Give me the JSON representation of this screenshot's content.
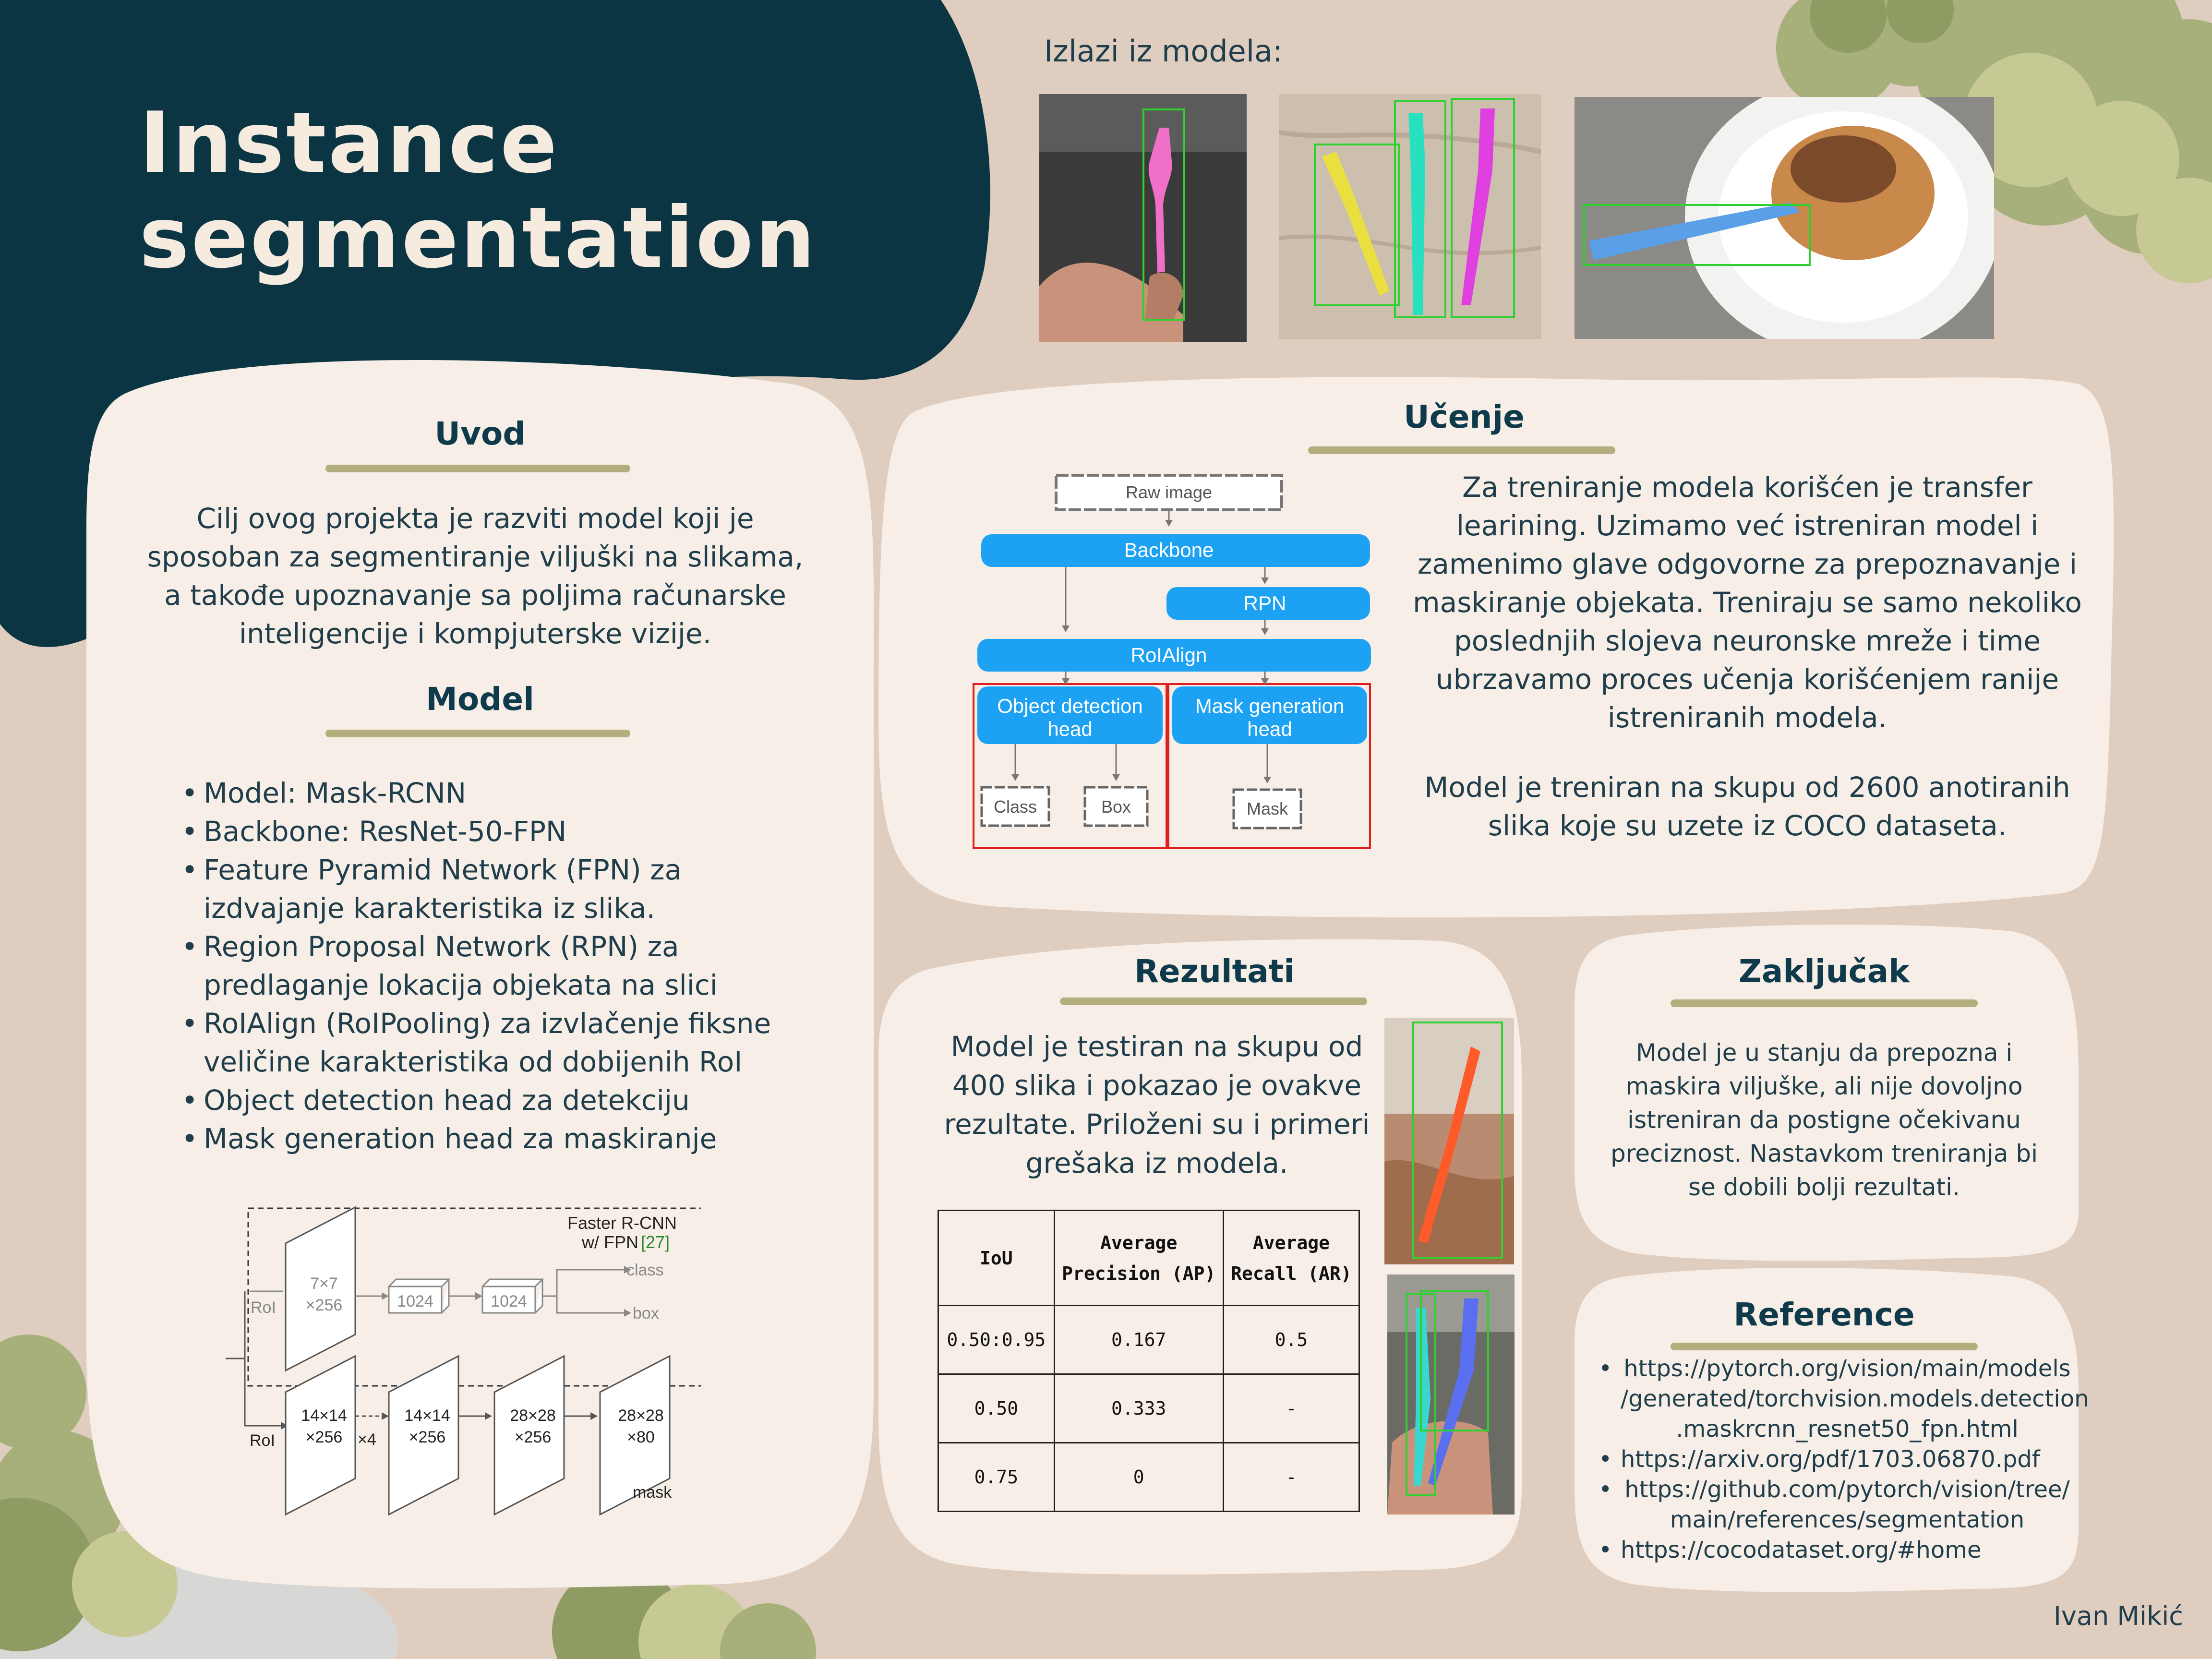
{
  "title": {
    "line1": "Instance",
    "line2": "segmentation"
  },
  "outputs": {
    "label": "Izlazi iz modela:"
  },
  "uvod": {
    "heading": "Uvod",
    "lines": [
      "Cilj ovog projekta je razviti model koji je",
      "sposoban za segmentiranje viljuški na slikama,",
      "a takođe upoznavanje sa poljima računarske",
      "inteligencije i kompjuterske vizije."
    ]
  },
  "model": {
    "heading": "Model",
    "items": [
      [
        "Model: Mask-RCNN"
      ],
      [
        "Backbone: ResNet-50-FPN"
      ],
      [
        "Feature Pyramid Network (FPN) za",
        "izdvajanje karakteristika iz slika."
      ],
      [
        "Region Proposal Network (RPN) za",
        "predlaganje lokacija objekata na slici"
      ],
      [
        "RoIAlign (RoIPooling) za izvlačenje fiksne",
        "veličine karakteristika od dobijenih RoI"
      ],
      [
        "Object detection head za detekciju"
      ],
      [
        "Mask generation head za maskiranje"
      ]
    ]
  },
  "fpn_diagram": {
    "title_line1": "Faster R-CNN",
    "title_line2_prefix": "w/ FPN",
    "title_ref": "[27]",
    "roi_top": "RoI",
    "roi_bottom": "RoI",
    "top_block_line1": "7×7",
    "top_block_line2": "×256",
    "fc1": "1024",
    "fc2": "1024",
    "class": "class",
    "box": "box",
    "blocks": [
      {
        "line1": "14×14",
        "line2": "×256"
      },
      {
        "line1": "14×14",
        "line2": "×256"
      },
      {
        "line1": "28×28",
        "line2": "×256"
      },
      {
        "line1": "28×28",
        "line2": "×80"
      }
    ],
    "times4": "×4",
    "mask": "mask"
  },
  "ucenje": {
    "heading": "Učenje",
    "para1": [
      "Za treniranje modela korišćen je transfer",
      "learining. Uzimamo već istreniran model i",
      "zamenimo glave odgovorne za prepoznavanje i",
      "maskiranje objekata. Treniraju se samo nekoliko",
      "poslednjih slojeva neuronske mreže i time",
      "ubrzavamo proces učenja korišćenjem ranije",
      "istreniranih modela."
    ],
    "para2": [
      "Model je treniran na skupu od 2600 anotiranih",
      "slika koje su uzete iz COCO dataseta."
    ]
  },
  "arch_diagram": {
    "raw_image": "Raw image",
    "backbone": "Backbone",
    "rpn": "RPN",
    "roialign": "RoIAlign",
    "odh_line1": "Object detection",
    "odh_line2": "head",
    "mgh_line1": "Mask generation",
    "mgh_line2": "head",
    "class": "Class",
    "box": "Box",
    "mask": "Mask"
  },
  "rezultati": {
    "heading": "Rezultati",
    "lines": [
      "Model je testiran na skupu od",
      "400 slika i pokazao je ovakve",
      "rezultate. Priloženi su i primeri",
      "grešaka iz modela."
    ],
    "table": {
      "headers": [
        [
          "IoU"
        ],
        [
          "Average",
          "Precision (AP)"
        ],
        [
          "Average",
          "Recall (AR)"
        ]
      ],
      "rows": [
        [
          "0.50:0.95",
          "0.167",
          "0.5"
        ],
        [
          "0.50",
          "0.333",
          "-"
        ],
        [
          "0.75",
          "0",
          "-"
        ]
      ]
    }
  },
  "zakljucak": {
    "heading": "Zaključak",
    "lines": [
      "Model je u stanju da prepozna i",
      "maskira viljuške, ali nije dovoljno",
      "istreniran da postigne očekivanu",
      "preciznost. Nastavkom treniranja bi",
      "se dobili bolji rezultati."
    ]
  },
  "reference": {
    "heading": "Reference",
    "items": [
      [
        "https://pytorch.org/vision/main/models",
        "/generated/torchvision.models.detection",
        ".maskrcnn_resnet50_fpn.html"
      ],
      [
        "https://arxiv.org/pdf/1703.06870.pdf"
      ],
      [
        "https://github.com/pytorch/vision/tree/",
        "main/references/segmentation"
      ],
      [
        "https://cocodataset.org/#home"
      ]
    ]
  },
  "author": "Ivan Mikić",
  "colors": {
    "dark_teal": "#0c3544",
    "background": "#dfcdc0",
    "card": "#f7efe7",
    "accent_line": "#b3ae7e",
    "diagram_blue": "#1da1f2",
    "red_box": "#e02020"
  }
}
